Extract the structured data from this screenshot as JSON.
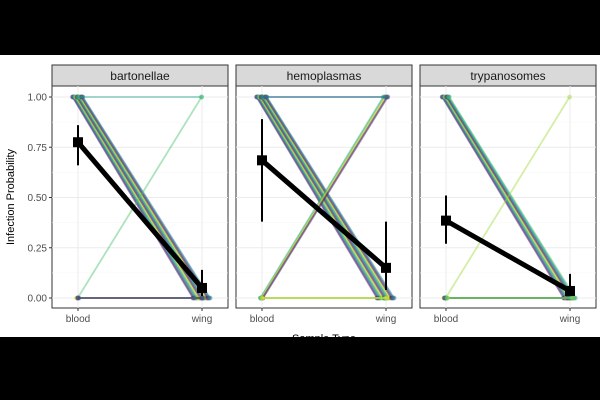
{
  "chart_data": {
    "type": "line",
    "xlabel": "Sample Type",
    "ylabel": "Infection Probability",
    "categories": [
      "blood",
      "wing"
    ],
    "ylim": [
      0,
      1
    ],
    "yticks": [
      "0.00",
      "0.25",
      "0.50",
      "0.75",
      "1.00"
    ],
    "grid": true,
    "panels": [
      {
        "name": "bartonellae",
        "mean": {
          "blood": 0.775,
          "wing": 0.05
        },
        "ci": {
          "blood": [
            0.66,
            0.86
          ],
          "wing": [
            0.01,
            0.14
          ]
        },
        "individuals": [
          {
            "blood": 1,
            "wing": 0,
            "n": 20
          },
          {
            "blood": 1,
            "wing": 1,
            "n": 1
          },
          {
            "blood": 0,
            "wing": 1,
            "n": 1
          },
          {
            "blood": 0,
            "wing": 0,
            "n": 5
          }
        ]
      },
      {
        "name": "hemoplasmas",
        "mean": {
          "blood": 0.685,
          "wing": 0.15
        },
        "ci": {
          "blood": [
            0.38,
            0.89
          ],
          "wing": [
            0.04,
            0.38
          ]
        },
        "individuals": [
          {
            "blood": 1,
            "wing": 0,
            "n": 20
          },
          {
            "blood": 0,
            "wing": 1,
            "n": 6
          },
          {
            "blood": 1,
            "wing": 1,
            "n": 2
          },
          {
            "blood": 0,
            "wing": 0,
            "n": 4
          }
        ]
      },
      {
        "name": "trypanosomes",
        "mean": {
          "blood": 0.385,
          "wing": 0.035
        },
        "ci": {
          "blood": [
            0.27,
            0.51
          ],
          "wing": [
            0.01,
            0.12
          ]
        },
        "individuals": [
          {
            "blood": 1,
            "wing": 0,
            "n": 14
          },
          {
            "blood": 0,
            "wing": 1,
            "n": 1
          },
          {
            "blood": 0,
            "wing": 0,
            "n": 8
          }
        ]
      }
    ],
    "colors": [
      "#440154",
      "#46327e",
      "#365c8d",
      "#277f8e",
      "#1fa187",
      "#4ac16d",
      "#a0da39",
      "#fde725"
    ],
    "mean_color": "#000000"
  }
}
